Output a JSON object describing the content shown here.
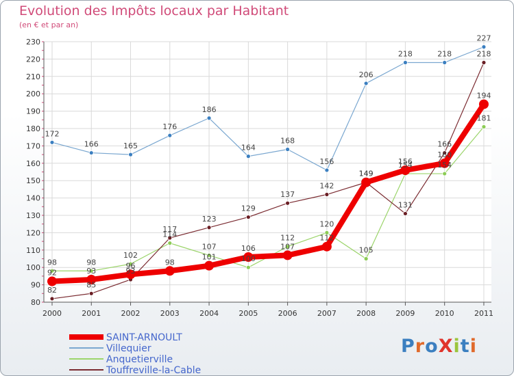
{
  "chart_data": {
    "type": "line",
    "title": "Evolution des Impôts locaux par Habitant",
    "subtitle": "(en € et par an)",
    "categories": [
      "2000",
      "2001",
      "2002",
      "2003",
      "2004",
      "2005",
      "2006",
      "2007",
      "2008",
      "2009",
      "2010",
      "2011"
    ],
    "ylim": [
      80,
      230
    ],
    "yticks": [
      80,
      90,
      100,
      110,
      120,
      130,
      140,
      150,
      160,
      170,
      180,
      190,
      200,
      210,
      220,
      230
    ],
    "series": [
      {
        "name": "Villequier",
        "color": "#7aa7d0",
        "pointColor": "#3b7fc0",
        "width": 1.2,
        "radius": 3,
        "values": [
          172,
          166,
          165,
          176,
          186,
          164,
          168,
          156,
          206,
          218,
          218,
          227
        ]
      },
      {
        "name": "Anquetierville",
        "color": "#9bd46a",
        "pointColor": "#8ccc55",
        "width": 1.2,
        "radius": 3,
        "values": [
          98,
          98,
          102,
          114,
          107,
          100,
          112,
          120,
          105,
          154,
          154,
          181
        ]
      },
      {
        "name": "Touffreville-la-Cable",
        "color": "#7a2a30",
        "pointColor": "#6a1e24",
        "width": 1.2,
        "radius": 3,
        "values": [
          82,
          85,
          93,
          117,
          123,
          129,
          137,
          142,
          149,
          131,
          166,
          218
        ]
      },
      {
        "name": "SAINT-ARNOULT",
        "color": "#ee0000",
        "pointColor": "#ee0000",
        "width": 8,
        "radius": 7,
        "values": [
          92,
          93,
          96,
          98,
          101,
          106,
          107,
          112,
          149,
          156,
          160,
          194
        ]
      }
    ],
    "legend": [
      "SAINT-ARNOULT",
      "Villequier",
      "Anquetierville",
      "Touffreville-la-Cable"
    ]
  },
  "logo": {
    "text": "ProXiti"
  }
}
